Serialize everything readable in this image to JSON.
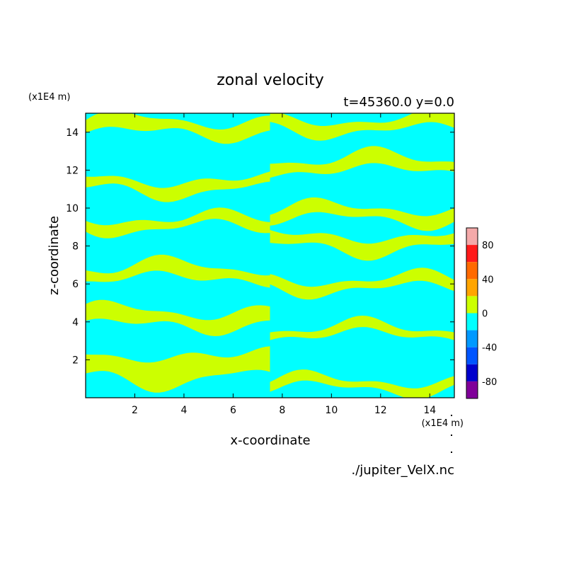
{
  "chart_data": {
    "type": "heatmap",
    "title": "zonal velocity",
    "subtitle": "t=45360.0 y=0.0",
    "xlabel": "x-coordinate",
    "ylabel": "z-coordinate",
    "x_unit": "(x1E4 m)",
    "y_unit": "(x1E4 m)",
    "source": "./jupiter_VelX.nc",
    "xlim": [
      0,
      15
    ],
    "ylim": [
      0,
      15
    ],
    "x_ticks": [
      2,
      4,
      6,
      8,
      10,
      12,
      14
    ],
    "y_ticks": [
      2,
      4,
      6,
      8,
      10,
      12,
      14
    ],
    "colorbar": {
      "range": [
        -100,
        100
      ],
      "tick_labels": [
        "80",
        "40",
        "0",
        "-40",
        "-80"
      ],
      "tick_values": [
        80,
        40,
        0,
        -40,
        -80
      ],
      "levels": [
        {
          "from": 80,
          "to": 100,
          "color": "#f4a9a9"
        },
        {
          "from": 60,
          "to": 80,
          "color": "#ff1a1a"
        },
        {
          "from": 40,
          "to": 60,
          "color": "#ff6a00"
        },
        {
          "from": 20,
          "to": 40,
          "color": "#ffa500"
        },
        {
          "from": 0,
          "to": 20,
          "color": "#ccff00"
        },
        {
          "from": -20,
          "to": 0,
          "color": "#00ffff"
        },
        {
          "from": -40,
          "to": -20,
          "color": "#0099ff"
        },
        {
          "from": -60,
          "to": -40,
          "color": "#0055ff"
        },
        {
          "from": -80,
          "to": -60,
          "color": "#0000cc"
        },
        {
          "from": -100,
          "to": -80,
          "color": "#800099"
        }
      ]
    },
    "field_colors": {
      "positive": "#ccff00",
      "negative": "#00ffff"
    },
    "bands": [
      {
        "x0": 0,
        "x1": 7.5,
        "centers": [
          14.3,
          11.2,
          9.2,
          6.6,
          4.2,
          1.6
        ],
        "widths": [
          0.9,
          0.8,
          0.7,
          0.9,
          1.0,
          1.7
        ]
      },
      {
        "x0": 7.5,
        "x1": 15,
        "centers": [
          14.4,
          12.3,
          9.7,
          8.2,
          6.0,
          3.5,
          0.7
        ],
        "widths": [
          0.8,
          0.9,
          0.8,
          0.9,
          0.7,
          0.6,
          0.6
        ]
      }
    ]
  }
}
